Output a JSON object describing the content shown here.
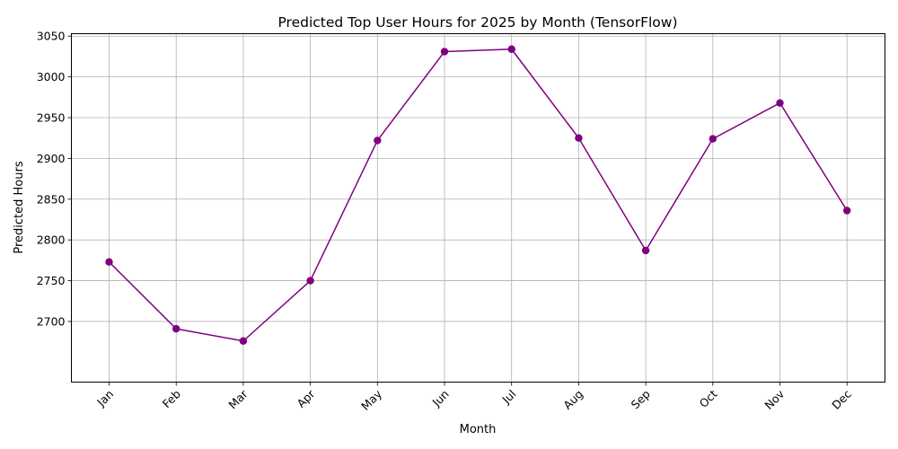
{
  "chart_data": {
    "type": "line",
    "title": "Predicted Top User Hours for 2025 by Month (TensorFlow)",
    "xlabel": "Month",
    "ylabel": "Predicted Hours",
    "categories": [
      "Jan",
      "Feb",
      "Mar",
      "Apr",
      "May",
      "Jun",
      "Jul",
      "Aug",
      "Sep",
      "Oct",
      "Nov",
      "Dec"
    ],
    "series": [
      {
        "values": [
          2773,
          2691,
          2676,
          2750,
          2922,
          3031,
          3034,
          2925,
          2787,
          2924,
          2968,
          2836
        ],
        "color": "#800080",
        "marker": "circle"
      }
    ],
    "ylim": [
      2625.6,
      3053
    ],
    "yticks": [
      2700,
      2750,
      2800,
      2850,
      2900,
      2950,
      3000,
      3050
    ],
    "grid": true,
    "xtick_rotation": 45
  }
}
